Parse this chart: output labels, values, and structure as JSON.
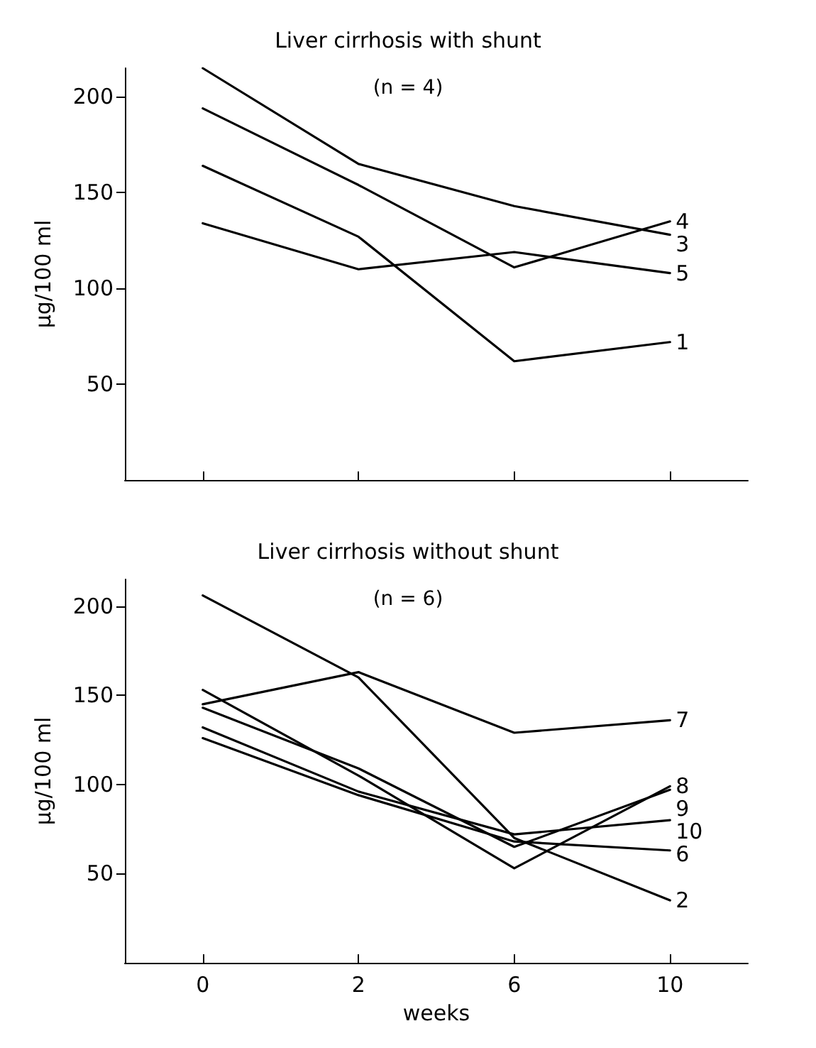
{
  "chart_data": [
    {
      "type": "line",
      "title": "Liver cirrhosis with shunt",
      "subtitle": "(n = 4)",
      "ylabel": "μg/100 ml",
      "categories": [
        null,
        null,
        null,
        null
      ],
      "ylim": [
        0,
        215
      ],
      "yticks": [
        50,
        100,
        150,
        200
      ],
      "grid": false,
      "legend": false,
      "marker": "none",
      "line_style": "solid",
      "series": [
        {
          "name": "4",
          "color": "#000000",
          "values": [
            194,
            154,
            111,
            135
          ]
        },
        {
          "name": "3",
          "color": "#000000",
          "values": [
            215,
            165,
            143,
            128
          ]
        },
        {
          "name": "5",
          "color": "#000000",
          "values": [
            134,
            110,
            119,
            108
          ]
        },
        {
          "name": "1",
          "color": "#000000",
          "values": [
            164,
            127,
            62,
            72
          ]
        }
      ]
    },
    {
      "type": "line",
      "title": "Liver cirrhosis without shunt",
      "subtitle": "(n = 6)",
      "ylabel": "μg/100 ml",
      "xlabel": "weeks",
      "categories": [
        "0",
        "2",
        "6",
        "10"
      ],
      "ylim": [
        0,
        215
      ],
      "yticks": [
        50,
        100,
        150,
        200
      ],
      "grid": false,
      "legend": false,
      "marker": "none",
      "line_style": "solid",
      "series": [
        {
          "name": "7",
          "color": "#000000",
          "values": [
            145,
            163,
            129,
            136
          ]
        },
        {
          "name": "8",
          "color": "#000000",
          "values": [
            153,
            105,
            53,
            99
          ]
        },
        {
          "name": "9",
          "color": "#000000",
          "values": [
            143,
            109,
            65,
            97
          ]
        },
        {
          "name": "10",
          "color": "#000000",
          "values": [
            132,
            96,
            72,
            80
          ]
        },
        {
          "name": "6",
          "color": "#000000",
          "values": [
            126,
            94,
            68,
            63
          ]
        },
        {
          "name": "2",
          "color": "#000000",
          "values": [
            206,
            160,
            70,
            35
          ]
        }
      ]
    }
  ]
}
